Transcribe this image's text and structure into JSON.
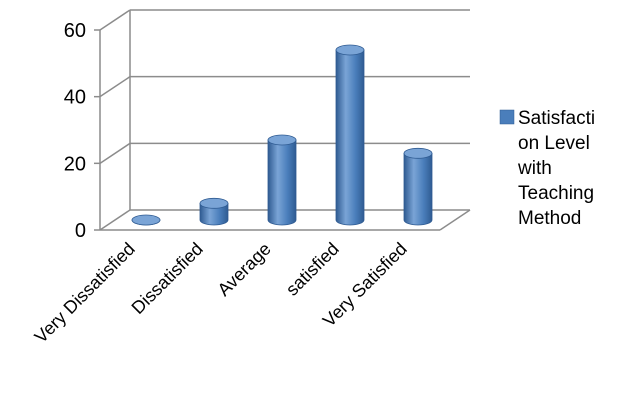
{
  "chart_data": {
    "type": "bar",
    "style": "3d-cylinder",
    "categories": [
      "Very Dissatisfied",
      "Dissatisfied",
      "Average",
      "satisfied",
      "Very Satisfied"
    ],
    "series": [
      {
        "name": "Satisfaction Level with Teaching Method",
        "values": [
          0,
          5,
          24,
          51,
          20
        ]
      }
    ],
    "ylim": [
      0,
      60
    ],
    "yticks": [
      "0",
      "20",
      "40",
      "60"
    ],
    "grid": true,
    "legend_position": "right",
    "legend_lines": [
      "Satisfacti",
      "on Level",
      "with",
      "Teaching",
      "Method"
    ],
    "colors": {
      "bar": "#4a7ebb",
      "bar_dark": "#2f5b92",
      "bar_light": "#7aa4d6",
      "gridline": "#8c8c8c"
    }
  }
}
